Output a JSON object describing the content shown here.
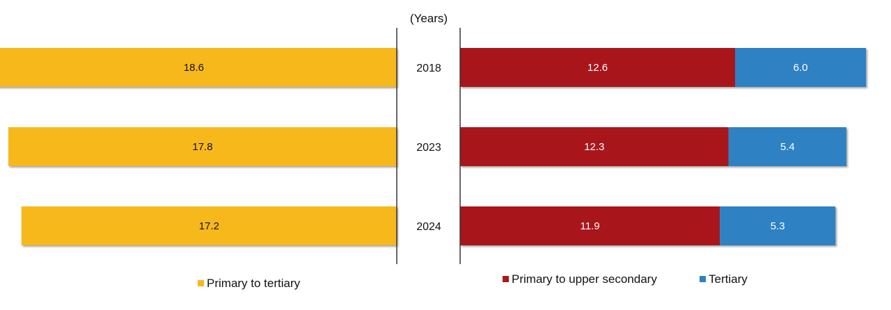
{
  "chart_data": {
    "type": "bar",
    "unit_label": "(Years)",
    "categories": [
      "2018",
      "2023",
      "2024"
    ],
    "left_panel": {
      "series": [
        {
          "name": "Primary to tertiary",
          "values": [
            18.6,
            17.8,
            17.2
          ],
          "labels": [
            "18.6",
            "17.8",
            "17.2"
          ],
          "color": "#F7B81F"
        }
      ],
      "direction": "right-to-left",
      "xlim": [
        0,
        19
      ]
    },
    "right_panel": {
      "stacked": true,
      "series": [
        {
          "name": "Primary to upper secondary",
          "values": [
            12.6,
            12.3,
            11.9
          ],
          "labels": [
            "12.6",
            "12.3",
            "11.9"
          ],
          "color": "#A8191C"
        },
        {
          "name": "Tertiary",
          "values": [
            6.0,
            5.4,
            5.3
          ],
          "labels": [
            "6.0",
            "5.4",
            "5.3"
          ],
          "color": "#2E81C3"
        }
      ],
      "direction": "left-to-right",
      "xlim": [
        0,
        19
      ]
    },
    "legend_placement": "bottom",
    "grid": false
  }
}
